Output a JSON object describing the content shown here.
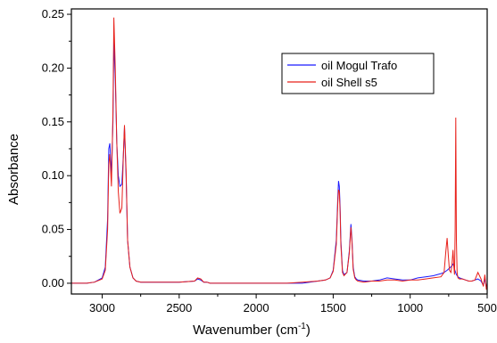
{
  "chart_data": {
    "type": "line",
    "xlabel": "Wavenumber (cm",
    "xlabel_sup": "-1",
    "xlabel_end": ")",
    "ylabel": "Absorbance",
    "xlim": [
      3200,
      500
    ],
    "ylim": [
      -0.01,
      0.255
    ],
    "x_reversed": true,
    "x_ticks": [
      3000,
      2500,
      2000,
      1500,
      1000,
      500
    ],
    "x_tick_labels": [
      "3000",
      "2500",
      "2000",
      "1500",
      "1000",
      "500"
    ],
    "y_ticks": [
      0.0,
      0.05,
      0.1,
      0.15,
      0.2,
      0.25
    ],
    "y_tick_labels": [
      "0.00",
      "0.05",
      "0.10",
      "0.15",
      "0.20",
      "0.25"
    ],
    "grid": false,
    "legend_position": "top-right",
    "series": [
      {
        "name": "oil Mogul Trafo",
        "color": "#1a1aff",
        "x": [
          3200,
          3100,
          3050,
          3000,
          2980,
          2965,
          2957,
          2950,
          2940,
          2930,
          2924,
          2915,
          2905,
          2895,
          2885,
          2872,
          2862,
          2855,
          2845,
          2835,
          2820,
          2800,
          2780,
          2750,
          2700,
          2600,
          2500,
          2400,
          2380,
          2360,
          2340,
          2320,
          2300,
          2200,
          2100,
          2000,
          1900,
          1800,
          1700,
          1600,
          1550,
          1520,
          1500,
          1480,
          1470,
          1465,
          1460,
          1455,
          1450,
          1440,
          1430,
          1410,
          1395,
          1385,
          1378,
          1370,
          1360,
          1350,
          1340,
          1300,
          1250,
          1200,
          1150,
          1100,
          1050,
          1000,
          950,
          900,
          850,
          800,
          780,
          760,
          745,
          730,
          720,
          710,
          700,
          690,
          680,
          660,
          640,
          620,
          600,
          580,
          560,
          540,
          525,
          515,
          505,
          500
        ],
        "y": [
          0.0,
          0.0,
          0.001,
          0.005,
          0.015,
          0.06,
          0.125,
          0.13,
          0.1,
          0.15,
          0.225,
          0.19,
          0.13,
          0.1,
          0.09,
          0.092,
          0.12,
          0.145,
          0.1,
          0.04,
          0.015,
          0.005,
          0.002,
          0.001,
          0.001,
          0.001,
          0.001,
          0.002,
          0.004,
          0.003,
          0.001,
          0.001,
          0.0,
          0.0,
          0.0,
          0.0,
          0.0,
          0.0,
          0.0,
          0.002,
          0.003,
          0.005,
          0.012,
          0.04,
          0.08,
          0.095,
          0.09,
          0.07,
          0.04,
          0.012,
          0.008,
          0.01,
          0.03,
          0.055,
          0.04,
          0.015,
          0.006,
          0.004,
          0.003,
          0.002,
          0.002,
          0.003,
          0.005,
          0.004,
          0.003,
          0.003,
          0.005,
          0.006,
          0.007,
          0.009,
          0.01,
          0.012,
          0.014,
          0.016,
          0.018,
          0.012,
          0.008,
          0.006,
          0.005,
          0.004,
          0.003,
          0.002,
          0.002,
          0.003,
          0.004,
          0.002,
          -0.002,
          0.004,
          -0.004,
          0.0
        ]
      },
      {
        "name": "oil Shell s5",
        "color": "#e8201a",
        "x": [
          3200,
          3100,
          3050,
          3000,
          2980,
          2965,
          2957,
          2950,
          2940,
          2930,
          2924,
          2915,
          2905,
          2895,
          2885,
          2872,
          2862,
          2855,
          2845,
          2835,
          2820,
          2800,
          2780,
          2750,
          2700,
          2600,
          2500,
          2400,
          2380,
          2360,
          2340,
          2320,
          2300,
          2200,
          2100,
          2000,
          1900,
          1800,
          1700,
          1600,
          1550,
          1520,
          1500,
          1480,
          1470,
          1465,
          1460,
          1455,
          1450,
          1440,
          1430,
          1410,
          1395,
          1385,
          1378,
          1370,
          1360,
          1350,
          1340,
          1300,
          1250,
          1200,
          1150,
          1100,
          1050,
          1000,
          950,
          900,
          850,
          800,
          780,
          768,
          760,
          752,
          745,
          735,
          728,
          722,
          716,
          712,
          708,
          704,
          700,
          695,
          690,
          680,
          660,
          640,
          620,
          600,
          580,
          560,
          540,
          525,
          515,
          505,
          500
        ],
        "y": [
          0.0,
          0.0,
          0.001,
          0.004,
          0.012,
          0.05,
          0.11,
          0.12,
          0.09,
          0.16,
          0.247,
          0.2,
          0.13,
          0.085,
          0.065,
          0.07,
          0.12,
          0.147,
          0.105,
          0.04,
          0.015,
          0.005,
          0.002,
          0.001,
          0.001,
          0.001,
          0.001,
          0.002,
          0.005,
          0.004,
          0.001,
          0.001,
          0.0,
          0.0,
          0.0,
          0.0,
          0.0,
          0.0,
          0.001,
          0.002,
          0.003,
          0.005,
          0.011,
          0.036,
          0.075,
          0.087,
          0.085,
          0.065,
          0.036,
          0.01,
          0.007,
          0.01,
          0.028,
          0.052,
          0.038,
          0.013,
          0.005,
          0.003,
          0.002,
          0.001,
          0.002,
          0.002,
          0.003,
          0.003,
          0.002,
          0.003,
          0.003,
          0.004,
          0.005,
          0.006,
          0.01,
          0.03,
          0.042,
          0.025,
          0.012,
          0.01,
          0.018,
          0.031,
          0.015,
          0.008,
          0.05,
          0.154,
          0.04,
          0.01,
          0.005,
          0.004,
          0.004,
          0.003,
          0.002,
          0.002,
          0.003,
          0.01,
          0.004,
          -0.003,
          0.008,
          -0.006,
          0.0
        ]
      }
    ]
  }
}
